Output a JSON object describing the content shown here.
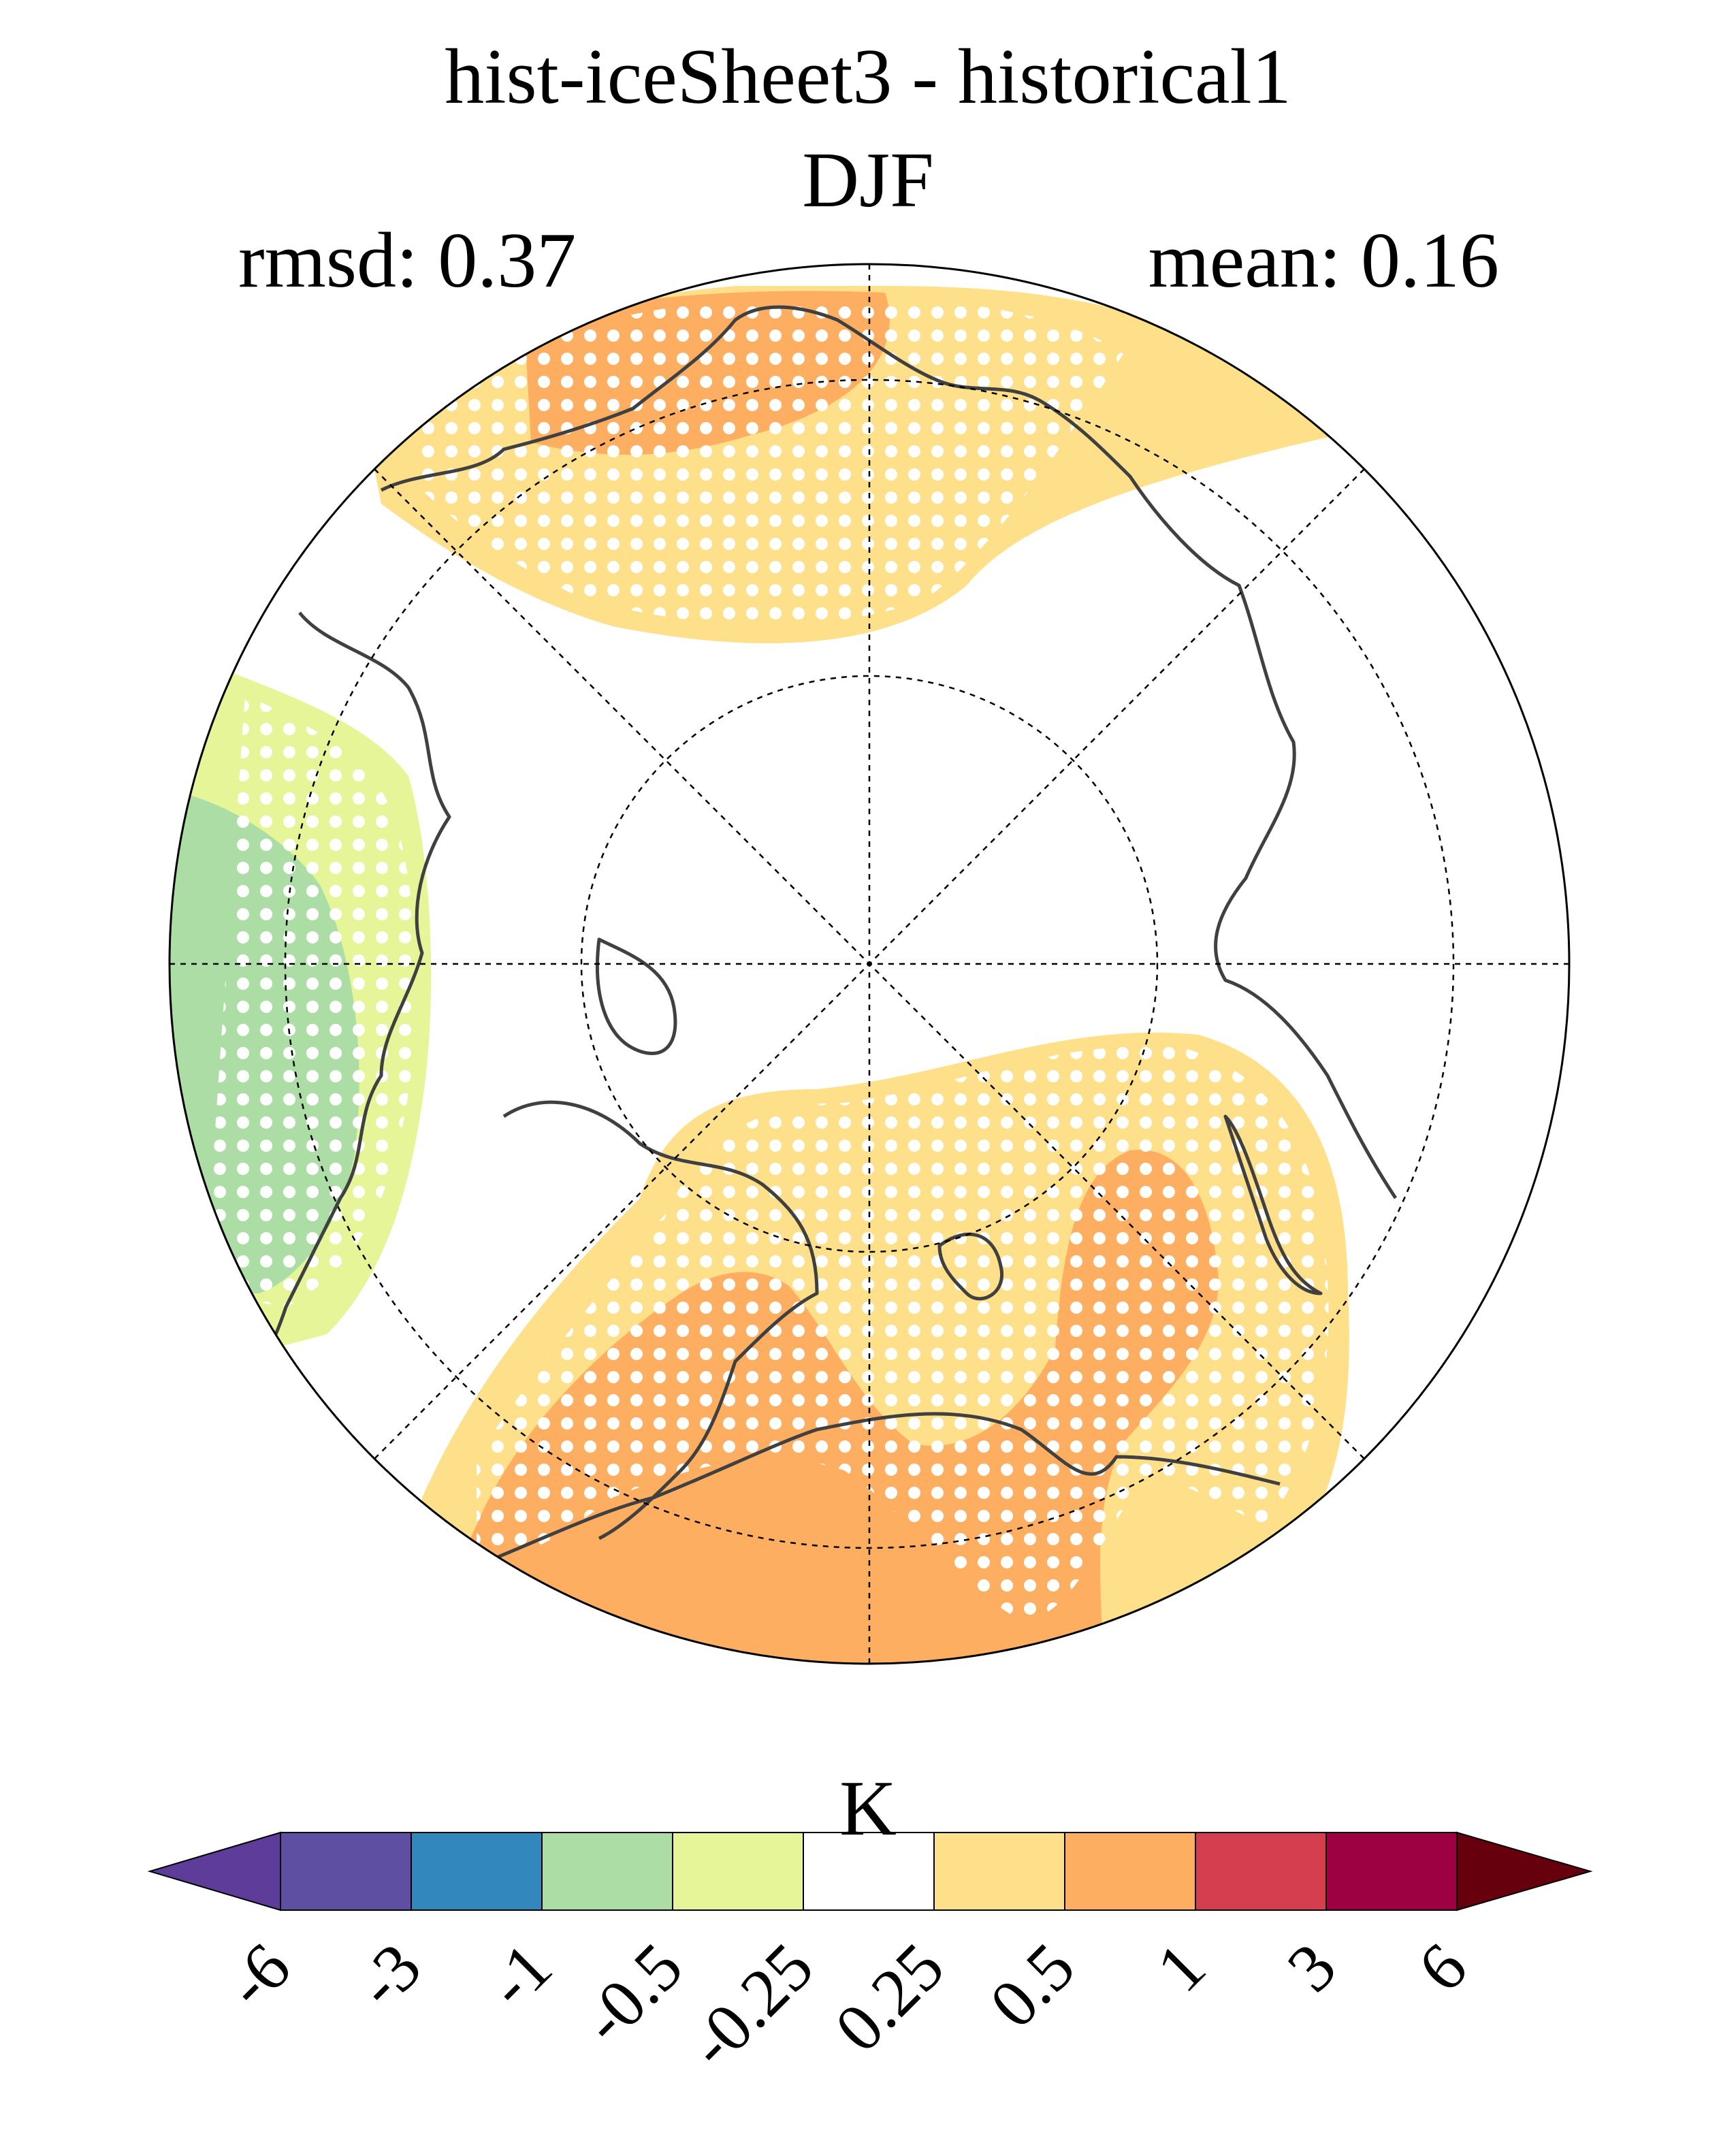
{
  "title": "hist-iceSheet3 - historical1",
  "subtitle": "DJF",
  "stats": {
    "rmsd": "rmsd: 0.37",
    "mean": "mean: 0.16"
  },
  "colorbar": {
    "units": "K",
    "ticks": [
      "-6",
      "-3",
      "-1",
      "-0.5",
      "-0.25",
      "0.25",
      "0.5",
      "1",
      "3",
      "6"
    ],
    "colors": [
      "#5e3c99",
      "#5e4fa2",
      "#3288bd",
      "#abdda4",
      "#e6f598",
      "#ffffff",
      "#fee08b",
      "#fdae61",
      "#d53e4f",
      "#9e0142",
      "#67000d"
    ]
  }
}
